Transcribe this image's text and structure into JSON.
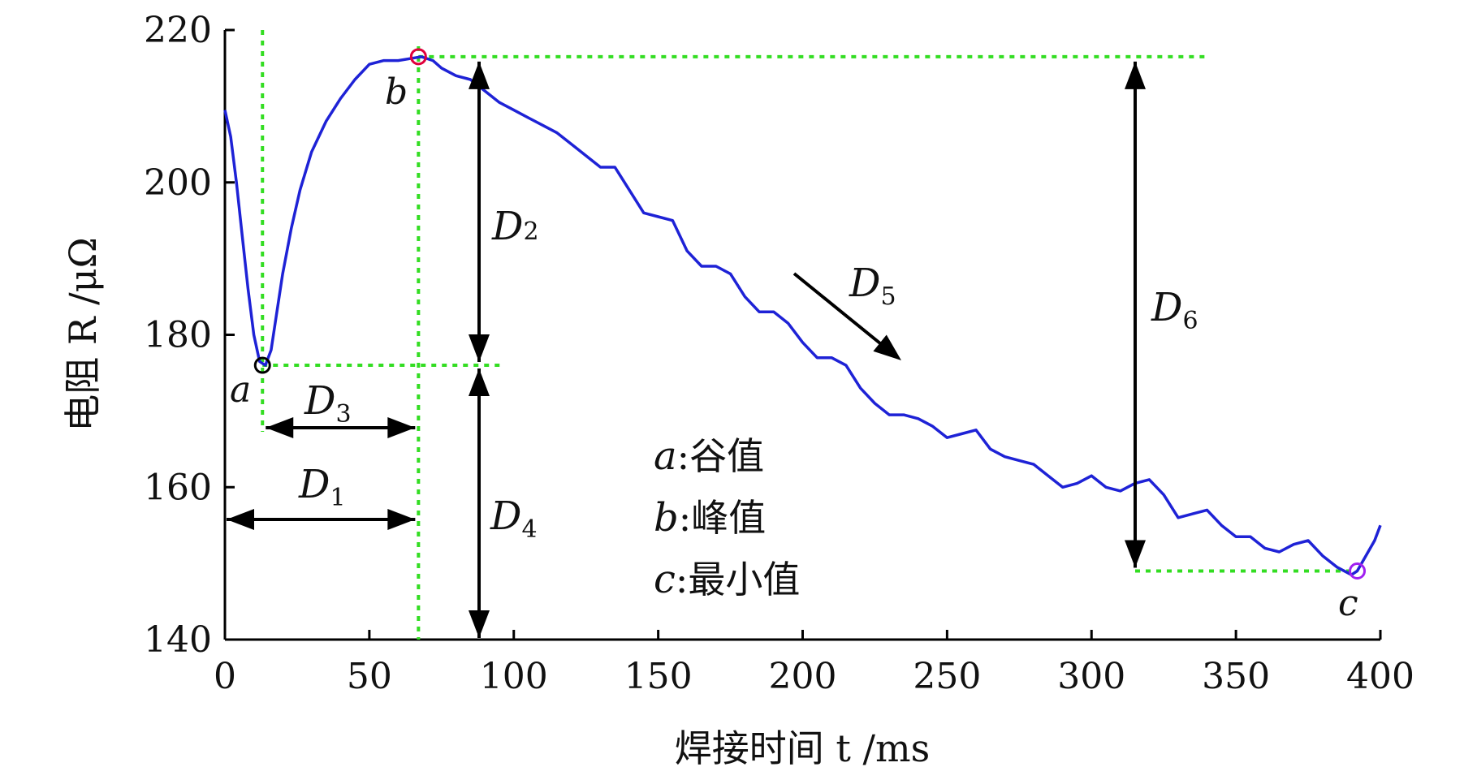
{
  "chart_data": {
    "type": "line",
    "xlabel": "焊接时间 t /ms",
    "ylabel": "电阻 R /μΩ",
    "xlim": [
      0,
      400
    ],
    "ylim": [
      140,
      220
    ],
    "xticks": [
      0,
      50,
      100,
      150,
      200,
      250,
      300,
      350,
      400
    ],
    "yticks": [
      140,
      160,
      180,
      200,
      220
    ],
    "xtick_labels": [
      "0",
      "50",
      "100",
      "150",
      "200",
      "250",
      "300",
      "350",
      "400"
    ],
    "ytick_labels": [
      "140",
      "160",
      "180",
      "200",
      "220"
    ],
    "grid": false,
    "colors": {
      "series": "#1e22d6",
      "guide": "#33dd22",
      "arrow": "#000000"
    },
    "series": [
      {
        "x": [
          0,
          2,
          4,
          6,
          8,
          10,
          12,
          14,
          16,
          18,
          20,
          23,
          26,
          30,
          35,
          40,
          45,
          50,
          55,
          60,
          65,
          68,
          72,
          75,
          80,
          85,
          90,
          95,
          100,
          105,
          110,
          115,
          120,
          125,
          130,
          135,
          140,
          145,
          150,
          155,
          160,
          165,
          170,
          175,
          180,
          185,
          190,
          195,
          200,
          205,
          210,
          215,
          220,
          225,
          230,
          235,
          240,
          245,
          250,
          255,
          260,
          265,
          270,
          275,
          280,
          285,
          290,
          295,
          300,
          305,
          310,
          315,
          320,
          325,
          330,
          335,
          340,
          345,
          350,
          355,
          360,
          365,
          370,
          375,
          380,
          385,
          390,
          392,
          395,
          398,
          400
        ],
        "y": [
          209.5,
          206,
          200,
          193,
          186,
          180,
          176.5,
          176,
          178,
          183,
          188,
          194,
          199,
          204,
          208,
          211,
          213.5,
          215.5,
          216,
          216,
          216.3,
          216.5,
          216,
          215,
          214,
          213.5,
          212,
          210.5,
          209.5,
          208.5,
          207.5,
          206.5,
          205,
          203.5,
          202,
          202,
          199,
          196,
          195.5,
          195,
          191,
          189,
          189,
          188,
          185,
          183,
          183,
          181.5,
          179,
          177,
          177,
          176,
          173,
          171,
          169.5,
          169.5,
          169,
          168,
          166.5,
          167,
          167.5,
          165,
          164,
          163.5,
          163,
          161.5,
          160,
          160.5,
          161.5,
          160,
          159.5,
          160.5,
          161,
          159,
          156,
          156.5,
          157,
          155,
          153.5,
          153.5,
          152,
          151.5,
          152.5,
          153,
          151,
          149.5,
          148.5,
          149,
          151,
          153,
          155
        ]
      }
    ],
    "points": [
      {
        "label": "a",
        "x": 13,
        "y": 176
      },
      {
        "label": "b",
        "x": 67,
        "y": 216.5
      },
      {
        "label": "c",
        "x": 392,
        "y": 149
      }
    ],
    "annotations": {
      "D1": {
        "main": "D",
        "sub": "1"
      },
      "D2": {
        "main": "D",
        "sub": "2"
      },
      "D3": {
        "main": "D",
        "sub": "3"
      },
      "D4": {
        "main": "D",
        "sub": "4"
      },
      "D5": {
        "main": "D",
        "sub": "5"
      },
      "D6": {
        "main": "D",
        "sub": "6"
      }
    },
    "legend": [
      {
        "key": "a",
        "text": ":谷值"
      },
      {
        "key": "b",
        "text": ":峰值"
      },
      {
        "key": "c",
        "text": ":最小值"
      }
    ]
  }
}
